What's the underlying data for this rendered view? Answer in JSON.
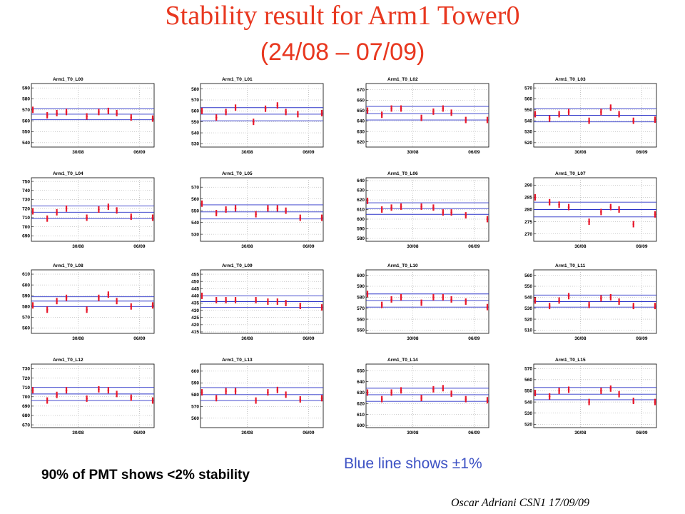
{
  "title": "Stability result for Arm1 Tower0",
  "subtitle": "(24/08 – 07/09)",
  "note_stability": "90% of PMT shows <2% stability",
  "note_blue_line": "Blue line shows ±1%",
  "footer": "Oscar Adriani      CSN1 17/09/09",
  "colors": {
    "title": "#e8371f",
    "data": "#e8182c",
    "band": "#2b33c8",
    "grid": "#a0a0a0"
  },
  "chart_data": [
    {
      "type": "scatter",
      "title": "Arm1_T0_L00",
      "x_ticks": [
        "30/08",
        "06/09"
      ],
      "y_ticks": [
        540,
        550,
        560,
        570,
        580,
        590
      ],
      "ylim": [
        536,
        594
      ],
      "bands": [
        561,
        566,
        571
      ],
      "grid": true,
      "x": [
        0.0,
        0.12,
        0.2,
        0.28,
        0.45,
        0.55,
        0.63,
        0.7,
        0.82,
        1.0
      ],
      "values": [
        570,
        565,
        567,
        568,
        564,
        568,
        569,
        567,
        563,
        562
      ]
    },
    {
      "type": "scatter",
      "title": "Arm1_T0_L01",
      "x_ticks": [
        "30/08",
        "06/09"
      ],
      "y_ticks": [
        530,
        540,
        550,
        560,
        570,
        580
      ],
      "ylim": [
        527,
        585
      ],
      "bands": [
        551,
        557,
        563
      ],
      "grid": true,
      "x": [
        0.0,
        0.12,
        0.2,
        0.28,
        0.43,
        0.53,
        0.63,
        0.7,
        0.8,
        1.0
      ],
      "values": [
        560,
        554,
        559,
        563,
        550,
        562,
        565,
        559,
        557,
        558
      ]
    },
    {
      "type": "scatter",
      "title": "Arm1_T0_L02",
      "x_ticks": [
        "30/08",
        "06/09"
      ],
      "y_ticks": [
        620,
        630,
        640,
        650,
        660,
        670
      ],
      "ylim": [
        615,
        676
      ],
      "bands": [
        641,
        647,
        654
      ],
      "grid": true,
      "x": [
        0.0,
        0.12,
        0.2,
        0.28,
        0.45,
        0.55,
        0.63,
        0.7,
        0.82,
        1.0
      ],
      "values": [
        650,
        646,
        652,
        652,
        643,
        649,
        652,
        648,
        641,
        641
      ]
    },
    {
      "type": "scatter",
      "title": "Arm1_T0_L03",
      "x_ticks": [
        "30/08",
        "06/09"
      ],
      "y_ticks": [
        520,
        530,
        540,
        550,
        560,
        570
      ],
      "ylim": [
        516,
        574
      ],
      "bands": [
        539,
        545,
        551
      ],
      "grid": true,
      "x": [
        0.0,
        0.12,
        0.2,
        0.28,
        0.45,
        0.55,
        0.63,
        0.7,
        0.82,
        1.0
      ],
      "values": [
        546,
        542,
        546,
        548,
        540,
        548,
        552,
        546,
        540,
        541
      ]
    },
    {
      "type": "scatter",
      "title": "Arm1_T0_L04",
      "x_ticks": [
        "30/08",
        "06/09"
      ],
      "y_ticks": [
        690,
        700,
        710,
        720,
        730,
        740,
        750
      ],
      "ylim": [
        684,
        754
      ],
      "bands": [
        709,
        716,
        723
      ],
      "grid": true,
      "x": [
        0.0,
        0.12,
        0.2,
        0.28,
        0.45,
        0.55,
        0.63,
        0.7,
        0.82,
        1.0
      ],
      "values": [
        717,
        709,
        716,
        720,
        710,
        719,
        722,
        718,
        711,
        710
      ]
    },
    {
      "type": "scatter",
      "title": "Arm1_T0_L05",
      "x_ticks": [
        "30/08",
        "06/09"
      ],
      "y_ticks": [
        530,
        540,
        550,
        560,
        570
      ],
      "ylim": [
        524,
        578
      ],
      "bands": [
        543,
        549,
        555
      ],
      "grid": true,
      "x": [
        0.0,
        0.12,
        0.2,
        0.28,
        0.45,
        0.55,
        0.63,
        0.7,
        0.82,
        1.0
      ],
      "values": [
        556,
        548,
        551,
        552,
        547,
        552,
        552,
        550,
        544,
        544
      ]
    },
    {
      "type": "scatter",
      "title": "Arm1_T0_L06",
      "x_ticks": [
        "30/08",
        "06/09"
      ],
      "y_ticks": [
        580,
        590,
        600,
        610,
        620,
        630,
        640
      ],
      "ylim": [
        577,
        643
      ],
      "bands": [
        605,
        611,
        617
      ],
      "grid": true,
      "x": [
        0.0,
        0.12,
        0.2,
        0.28,
        0.45,
        0.55,
        0.63,
        0.7,
        0.82,
        1.0
      ],
      "values": [
        619,
        610,
        612,
        613,
        613,
        612,
        607,
        607,
        604,
        600
      ]
    },
    {
      "type": "scatter",
      "title": "Arm1_T0_L07",
      "x_ticks": [
        "30/08",
        "06/09"
      ],
      "y_ticks": [
        270,
        275,
        280,
        285,
        290
      ],
      "ylim": [
        267,
        293
      ],
      "bands": [
        277,
        280,
        283
      ],
      "grid": true,
      "x": [
        0.0,
        0.12,
        0.2,
        0.28,
        0.45,
        0.55,
        0.63,
        0.7,
        0.82,
        1.0
      ],
      "values": [
        285,
        283,
        282,
        281,
        275,
        279,
        281,
        280,
        274,
        278
      ]
    },
    {
      "type": "scatter",
      "title": "Arm1_T0_L08",
      "x_ticks": [
        "30/08",
        "06/09"
      ],
      "y_ticks": [
        560,
        570,
        580,
        590,
        600,
        610
      ],
      "ylim": [
        555,
        614
      ],
      "bands": [
        580,
        585,
        589
      ],
      "grid": true,
      "x": [
        0.0,
        0.12,
        0.2,
        0.28,
        0.45,
        0.55,
        0.63,
        0.7,
        0.82,
        1.0
      ],
      "values": [
        581,
        577,
        585,
        588,
        577,
        588,
        591,
        585,
        580,
        581
      ]
    },
    {
      "type": "scatter",
      "title": "Arm1_T0_L09",
      "x_ticks": [
        "30/08",
        "06/09"
      ],
      "y_ticks": [
        415,
        420,
        425,
        430,
        435,
        440,
        445,
        450,
        455
      ],
      "ylim": [
        414,
        458
      ],
      "bands": [
        432,
        436,
        440
      ],
      "grid": true,
      "x": [
        0.0,
        0.12,
        0.2,
        0.28,
        0.45,
        0.55,
        0.63,
        0.7,
        0.82,
        1.0
      ],
      "values": [
        440,
        437,
        437,
        437,
        437,
        436,
        436,
        435,
        433,
        432
      ]
    },
    {
      "type": "scatter",
      "title": "Arm1_T0_L10",
      "x_ticks": [
        "30/08",
        "06/09"
      ],
      "y_ticks": [
        550,
        560,
        570,
        580,
        590,
        600
      ],
      "ylim": [
        547,
        605
      ],
      "bands": [
        571,
        577,
        583
      ],
      "grid": true,
      "x": [
        0.0,
        0.12,
        0.2,
        0.28,
        0.45,
        0.55,
        0.63,
        0.7,
        0.82,
        1.0
      ],
      "values": [
        583,
        573,
        578,
        580,
        575,
        580,
        580,
        578,
        576,
        571
      ]
    },
    {
      "type": "scatter",
      "title": "Arm1_T0_L11",
      "x_ticks": [
        "30/08",
        "06/09"
      ],
      "y_ticks": [
        510,
        520,
        530,
        540,
        550,
        560
      ],
      "ylim": [
        507,
        565
      ],
      "bands": [
        531,
        536,
        542
      ],
      "grid": true,
      "x": [
        0.0,
        0.12,
        0.2,
        0.28,
        0.45,
        0.55,
        0.63,
        0.7,
        0.82,
        1.0
      ],
      "values": [
        537,
        532,
        537,
        541,
        533,
        539,
        540,
        536,
        532,
        532
      ]
    },
    {
      "type": "scatter",
      "title": "Arm1_T0_L12",
      "x_ticks": [
        "30/08",
        "06/09"
      ],
      "y_ticks": [
        670,
        680,
        690,
        700,
        710,
        720,
        730
      ],
      "ylim": [
        667,
        735
      ],
      "bands": [
        696,
        703,
        710
      ],
      "grid": true,
      "x": [
        0.0,
        0.12,
        0.2,
        0.28,
        0.45,
        0.55,
        0.63,
        0.7,
        0.82,
        1.0
      ],
      "values": [
        707,
        696,
        702,
        707,
        698,
        708,
        707,
        703,
        699,
        696
      ]
    },
    {
      "type": "scatter",
      "title": "Arm1_T0_L13",
      "x_ticks": [
        "30/08",
        "06/09"
      ],
      "y_ticks": [
        560,
        570,
        580,
        590,
        600
      ],
      "ylim": [
        552,
        606
      ],
      "bands": [
        575,
        580,
        586
      ],
      "grid": true,
      "x": [
        0.0,
        0.12,
        0.2,
        0.28,
        0.45,
        0.55,
        0.63,
        0.7,
        0.82,
        1.0
      ],
      "values": [
        582,
        577,
        583,
        583,
        575,
        582,
        584,
        580,
        576,
        577
      ]
    },
    {
      "type": "scatter",
      "title": "Arm1_T0_L14",
      "x_ticks": [
        "30/08",
        "06/09"
      ],
      "y_ticks": [
        600,
        610,
        620,
        630,
        640,
        650
      ],
      "ylim": [
        598,
        656
      ],
      "bands": [
        622,
        628,
        634
      ],
      "grid": true,
      "x": [
        0.0,
        0.12,
        0.2,
        0.28,
        0.45,
        0.55,
        0.63,
        0.7,
        0.82,
        1.0
      ],
      "values": [
        630,
        624,
        630,
        632,
        625,
        633,
        634,
        629,
        624,
        623
      ]
    },
    {
      "type": "scatter",
      "title": "Arm1_T0_L15",
      "x_ticks": [
        "30/08",
        "06/09"
      ],
      "y_ticks": [
        520,
        530,
        540,
        550,
        560,
        570
      ],
      "ylim": [
        517,
        574
      ],
      "bands": [
        542,
        547,
        553
      ],
      "grid": true,
      "x": [
        0.0,
        0.12,
        0.2,
        0.28,
        0.45,
        0.55,
        0.63,
        0.7,
        0.82,
        1.0
      ],
      "values": [
        548,
        545,
        550,
        551,
        540,
        550,
        552,
        547,
        541,
        540
      ]
    }
  ]
}
